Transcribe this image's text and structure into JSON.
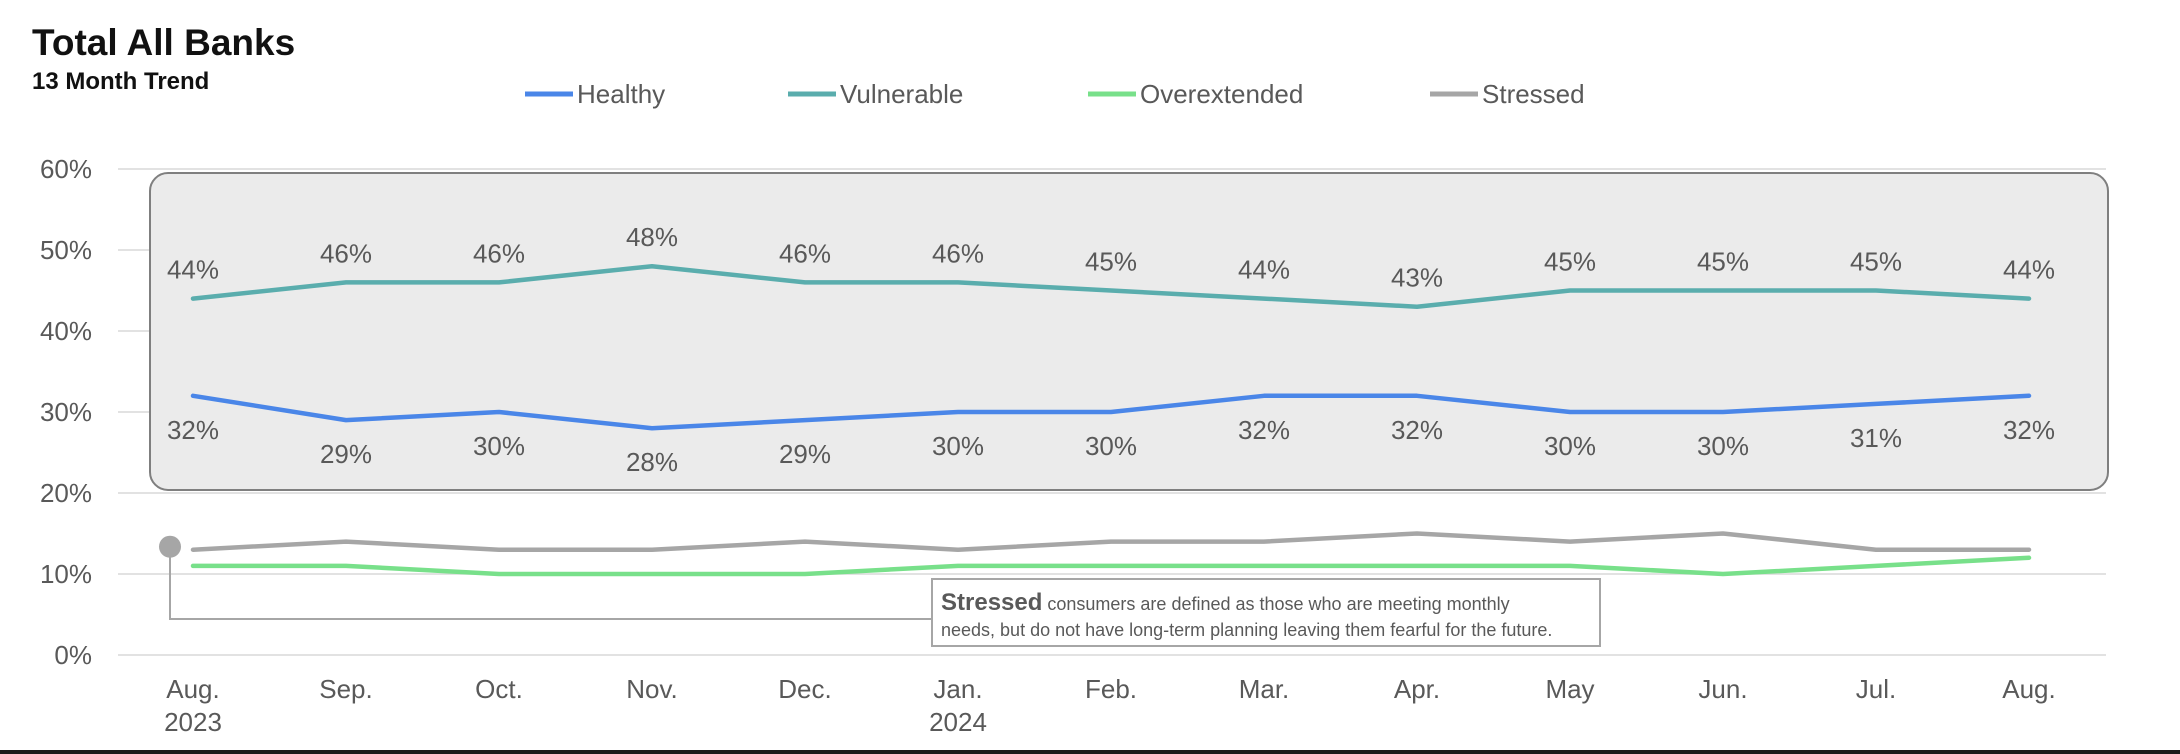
{
  "title": "Total All Banks",
  "subtitle": "13 Month Trend",
  "chart_data": {
    "type": "line",
    "title": "Total All Banks",
    "subtitle": "13 Month Trend",
    "categories": [
      "Aug.",
      "Sep.",
      "Oct.",
      "Nov.",
      "Dec.",
      "Jan.",
      "Feb.",
      "Mar.",
      "Apr.",
      "May",
      "Jun.",
      "Jul.",
      "Aug."
    ],
    "year_labels": [
      {
        "index": 0,
        "label": "2023"
      },
      {
        "index": 5,
        "label": "2024"
      }
    ],
    "y_ticks": [
      "0%",
      "10%",
      "20%",
      "30%",
      "40%",
      "50%",
      "60%"
    ],
    "ylim": [
      0,
      60
    ],
    "y_unit": "%",
    "grid": true,
    "legend_position": "top",
    "series": [
      {
        "name": "Healthy",
        "color": "#4a86e8",
        "values": [
          32,
          29,
          30,
          28,
          29,
          30,
          30,
          32,
          32,
          30,
          30,
          31,
          32
        ],
        "labels_shown": true,
        "label_position": "below"
      },
      {
        "name": "Vulnerable",
        "color": "#5aadad",
        "values": [
          44,
          46,
          46,
          48,
          46,
          46,
          45,
          44,
          43,
          45,
          45,
          45,
          44
        ],
        "labels_shown": true,
        "label_position": "above"
      },
      {
        "name": "Overextended",
        "color": "#78e08a",
        "values": [
          11,
          11,
          10,
          10,
          10,
          11,
          11,
          11,
          11,
          11,
          10,
          11,
          12
        ],
        "labels_shown": false
      },
      {
        "name": "Stressed",
        "color": "#a6a6a6",
        "values": [
          13,
          14,
          13,
          13,
          14,
          13,
          14,
          14,
          15,
          14,
          15,
          13,
          13
        ],
        "labels_shown": false
      }
    ],
    "annotation": {
      "bold": "Stressed",
      "line1": " consumers are defined as those who are meeting monthly",
      "line2": "needs, but do not have long-term planning leaving them fearful for the future."
    }
  }
}
